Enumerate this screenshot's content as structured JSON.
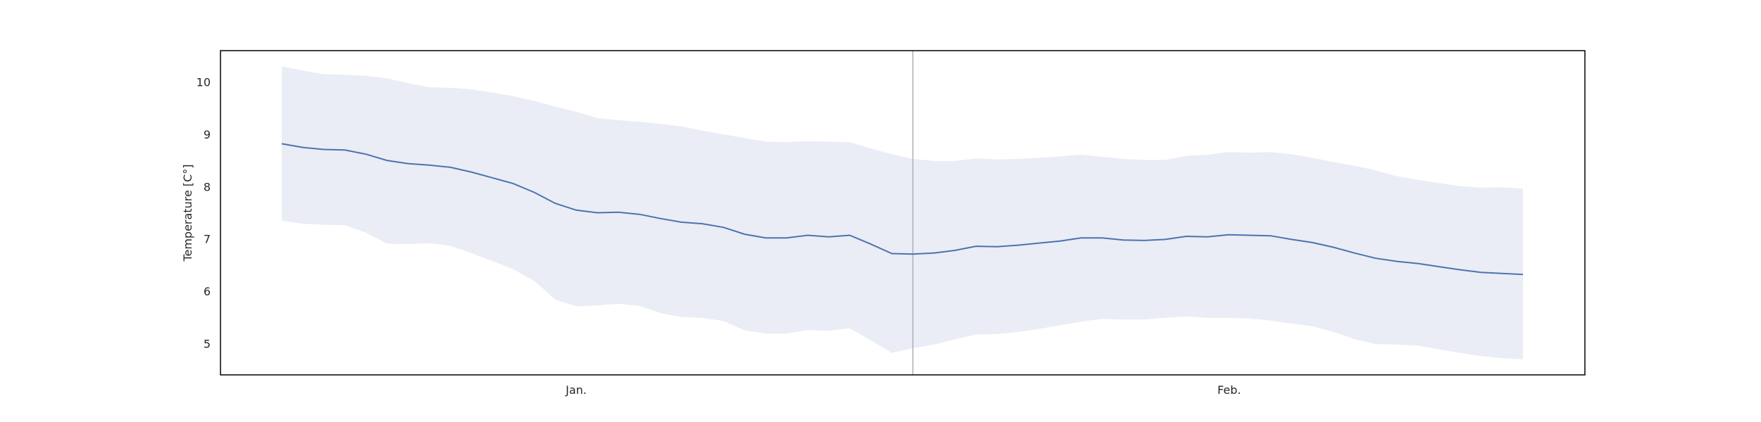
{
  "chart_data": {
    "type": "line",
    "title": "",
    "xlabel": "",
    "ylabel": "Temperature [C°]",
    "x_ticks": [
      "Jan.",
      "Feb."
    ],
    "ylim": [
      4.4,
      10.6
    ],
    "y_ticks": [
      5,
      6,
      7,
      8,
      9,
      10
    ],
    "grid": false,
    "legend": "none",
    "vertical_marker": {
      "index": 30,
      "color": "#b0b0b0"
    },
    "colors": {
      "line": "#4c72b0",
      "band": "#eaedf5",
      "frame": "#000000"
    },
    "series": [
      {
        "mean": [
          8.82,
          8.75,
          8.71,
          8.7,
          8.62,
          8.5,
          8.44,
          8.41,
          8.37,
          8.28,
          8.17,
          8.06,
          7.89,
          7.68,
          7.55,
          7.5,
          7.51,
          7.47,
          7.39,
          7.32,
          7.29,
          7.22,
          7.09,
          7.02,
          7.02,
          7.07,
          7.04,
          7.07,
          6.9,
          6.72,
          6.71,
          6.73,
          6.78,
          6.86,
          6.85,
          6.88,
          6.92,
          6.96,
          7.02,
          7.02,
          6.98,
          6.97,
          6.99,
          7.05,
          7.04,
          7.08,
          7.07,
          7.06,
          6.99,
          6.93,
          6.84,
          6.73,
          6.63,
          6.57,
          6.53,
          6.47,
          6.41,
          6.36,
          6.34,
          6.32
        ],
        "upper": [
          10.3,
          10.22,
          10.15,
          10.14,
          10.12,
          10.07,
          9.98,
          9.9,
          9.89,
          9.86,
          9.8,
          9.73,
          9.64,
          9.53,
          9.43,
          9.31,
          9.27,
          9.24,
          9.2,
          9.15,
          9.07,
          9.0,
          8.93,
          8.86,
          8.85,
          8.87,
          8.86,
          8.85,
          8.73,
          8.62,
          8.53,
          8.49,
          8.49,
          8.54,
          8.52,
          8.53,
          8.55,
          8.58,
          8.61,
          8.57,
          8.53,
          8.51,
          8.51,
          8.59,
          8.61,
          8.66,
          8.65,
          8.66,
          8.62,
          8.55,
          8.47,
          8.4,
          8.31,
          8.2,
          8.13,
          8.07,
          8.01,
          7.98,
          7.99,
          7.96
        ],
        "lower": [
          7.35,
          7.29,
          7.27,
          7.26,
          7.12,
          6.91,
          6.9,
          6.92,
          6.87,
          6.73,
          6.58,
          6.42,
          6.2,
          5.84,
          5.71,
          5.73,
          5.76,
          5.72,
          5.58,
          5.51,
          5.49,
          5.43,
          5.25,
          5.19,
          5.19,
          5.26,
          5.24,
          5.29,
          5.06,
          4.82,
          4.91,
          4.98,
          5.08,
          5.17,
          5.18,
          5.22,
          5.28,
          5.35,
          5.42,
          5.47,
          5.46,
          5.46,
          5.49,
          5.52,
          5.49,
          5.49,
          5.48,
          5.44,
          5.38,
          5.33,
          5.22,
          5.08,
          4.99,
          4.98,
          4.96,
          4.89,
          4.82,
          4.76,
          4.72,
          4.7
        ]
      }
    ]
  }
}
